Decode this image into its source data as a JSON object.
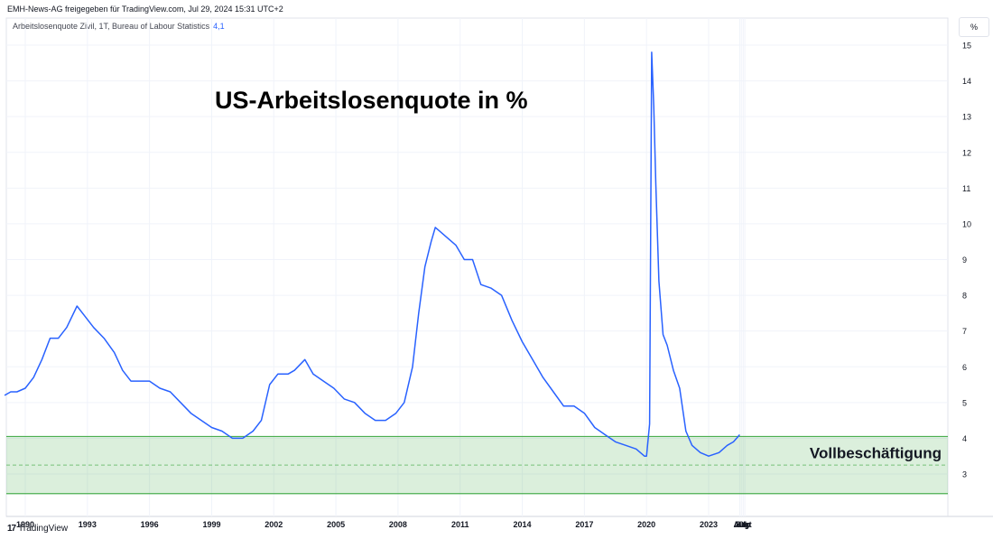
{
  "header": {
    "attribution": "EMH-News-AG freigegeben für TradingView.com, Jul 29, 2024 15:31 UTC+2",
    "legend_label": "Arbeitslosenquote Zivil, 1T, Bureau of Labour Statistics",
    "legend_value": "4,1",
    "unit_label": "%"
  },
  "footer": {
    "logo": "17",
    "brand": "TradingView"
  },
  "chart_data": {
    "type": "line",
    "title": "US-Arbeitslosenquote in %",
    "series": [
      {
        "color": "#2962ff",
        "x": [
          1989.0,
          1989.3,
          1989.6,
          1990.0,
          1990.4,
          1990.8,
          1991.2,
          1991.6,
          1992.0,
          1992.5,
          1992.9,
          1993.3,
          1993.8,
          1994.3,
          1994.7,
          1995.1,
          1995.6,
          1996.0,
          1996.5,
          1997.0,
          1997.5,
          1998.0,
          1998.5,
          1999.0,
          1999.5,
          2000.0,
          2000.5,
          2001.0,
          2001.4,
          2001.8,
          2002.2,
          2002.7,
          2003.0,
          2003.5,
          2003.9,
          2004.4,
          2004.9,
          2005.4,
          2005.9,
          2006.4,
          2006.9,
          2007.4,
          2007.9,
          2008.3,
          2008.7,
          2009.0,
          2009.3,
          2009.6,
          2009.8,
          2010.0,
          2010.4,
          2010.8,
          2011.2,
          2011.6,
          2012.0,
          2012.5,
          2013.0,
          2013.5,
          2014.0,
          2014.5,
          2015.0,
          2015.5,
          2016.0,
          2016.5,
          2017.0,
          2017.5,
          2018.0,
          2018.5,
          2019.0,
          2019.5,
          2019.9,
          2020.0,
          2020.15,
          2020.25,
          2020.35,
          2020.45,
          2020.6,
          2020.8,
          2021.0,
          2021.3,
          2021.6,
          2021.9,
          2022.2,
          2022.6,
          2023.0,
          2023.5,
          2023.9,
          2024.2,
          2024.5
        ],
        "values": [
          5.2,
          5.3,
          5.3,
          5.4,
          5.7,
          6.2,
          6.8,
          6.8,
          7.1,
          7.7,
          7.4,
          7.1,
          6.8,
          6.4,
          5.9,
          5.6,
          5.6,
          5.6,
          5.4,
          5.3,
          5.0,
          4.7,
          4.5,
          4.3,
          4.2,
          4.0,
          4.0,
          4.2,
          4.5,
          5.5,
          5.8,
          5.8,
          5.9,
          6.2,
          5.8,
          5.6,
          5.4,
          5.1,
          5.0,
          4.7,
          4.5,
          4.5,
          4.7,
          5.0,
          6.0,
          7.5,
          8.8,
          9.5,
          9.9,
          9.8,
          9.6,
          9.4,
          9.0,
          9.0,
          8.3,
          8.2,
          8.0,
          7.3,
          6.7,
          6.2,
          5.7,
          5.3,
          4.9,
          4.9,
          4.7,
          4.3,
          4.1,
          3.9,
          3.8,
          3.7,
          3.5,
          3.5,
          4.4,
          14.8,
          13.3,
          11.1,
          8.4,
          6.9,
          6.6,
          5.9,
          5.4,
          4.2,
          3.8,
          3.6,
          3.5,
          3.6,
          3.8,
          3.9,
          4.1
        ]
      }
    ],
    "ylim": [
      2.5,
      15.5
    ],
    "y_ticks": [
      3,
      4,
      5,
      6,
      7,
      8,
      9,
      10,
      11,
      12,
      13,
      14,
      15
    ],
    "x_ticks": [
      {
        "label": "1990",
        "x": 1990.0
      },
      {
        "label": "1993",
        "x": 1993.0
      },
      {
        "label": "1996",
        "x": 1996.0
      },
      {
        "label": "1999",
        "x": 1999.0
      },
      {
        "label": "2002",
        "x": 2002.0
      },
      {
        "label": "2005",
        "x": 2005.0
      },
      {
        "label": "2008",
        "x": 2008.0
      },
      {
        "label": "2011",
        "x": 2011.0
      },
      {
        "label": "2014",
        "x": 2014.0
      },
      {
        "label": "2017",
        "x": 2017.0
      },
      {
        "label": "2020",
        "x": 2020.0
      },
      {
        "label": "2023",
        "x": 2023.0
      },
      {
        "label": "Jul",
        "x": 2024.5
      },
      {
        "label": "Aug",
        "x": 2024.58
      },
      {
        "label": "Sep",
        "x": 2024.67
      },
      {
        "label": "Okt",
        "x": 2024.75
      }
    ],
    "band": {
      "label": "Vollbeschäftigung",
      "from": 2.45,
      "to": 4.05,
      "mid": 3.25,
      "color": "#4caf50"
    }
  }
}
